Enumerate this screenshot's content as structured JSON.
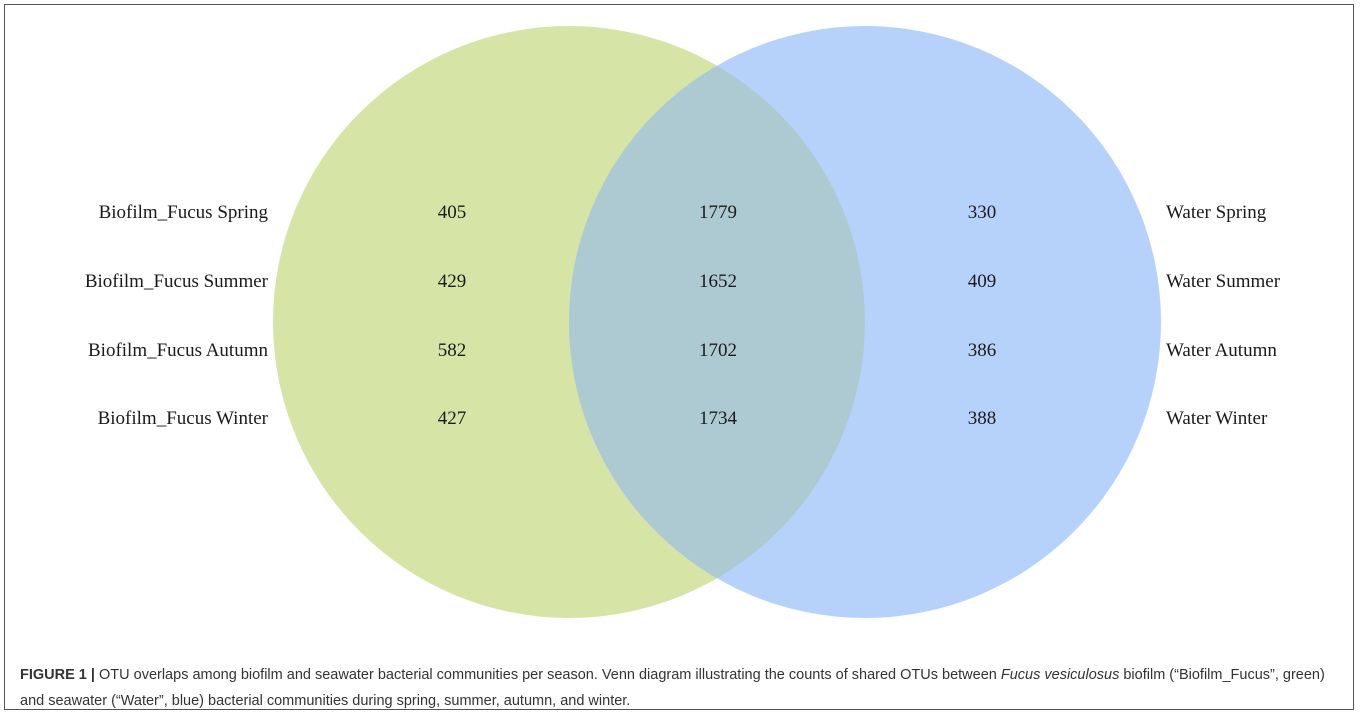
{
  "diagram": {
    "type": "venn",
    "sets": [
      {
        "name": "Biofilm_Fucus",
        "color": "#d6e4a6"
      },
      {
        "name": "Water",
        "color": "#b7d2fa"
      }
    ],
    "overlap_color": "#adcad3",
    "rows": [
      {
        "left_label": "Biofilm_Fucus Spring",
        "left_only": "405",
        "shared": "1779",
        "right_only": "330",
        "right_label": "Water Spring"
      },
      {
        "left_label": "Biofilm_Fucus Summer",
        "left_only": "429",
        "shared": "1652",
        "right_only": "409",
        "right_label": "Water Summer"
      },
      {
        "left_label": "Biofilm_Fucus Autumn",
        "left_only": "582",
        "shared": "1702",
        "right_only": "386",
        "right_label": "Water Autumn"
      },
      {
        "left_label": "Biofilm_Fucus Winter",
        "left_only": "427",
        "shared": "1734",
        "right_only": "388",
        "right_label": "Water Winter"
      }
    ]
  },
  "caption": {
    "figure_label": "FIGURE 1 |",
    "text_part1": " OTU overlaps among biofilm and seawater bacterial communities per season. Venn diagram illustrating the counts of shared OTUs between ",
    "species_italic": "Fucus vesiculosus",
    "text_part2": " biofilm (“Biofilm_Fucus”, green) and seawater (“Water”, blue) bacterial communities during spring, summer, autumn, and winter."
  }
}
